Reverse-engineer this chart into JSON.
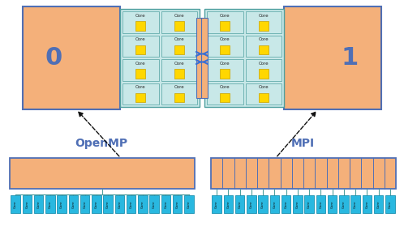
{
  "bg_color": "#ffffff",
  "node_fill": "#f4b07a",
  "node_edge": "#4f6fb5",
  "numa_fill": "#c8e8e8",
  "numa_edge": "#4f9f9f",
  "core_fill": "#ffd700",
  "core_edge": "#c8a000",
  "core_text_color": "#222222",
  "mem_bar_fill": "#f4b07a",
  "mem_bar_edge": "#4f6fb5",
  "thread_fill": "#29b8e0",
  "thread_edge": "#1a90b0",
  "connect_color": "#3a6fd4",
  "arrow_color": "#111111",
  "wire_color": "#4f9f9f",
  "openmp_label": "OpenMP",
  "mpi_label": "MPI",
  "node0_label": "0",
  "node1_label": "1",
  "core_label": "Core",
  "n_cores_omp": 16,
  "n_procs_mpi": 16,
  "figw": 4.98,
  "figh": 2.95,
  "dpi": 100
}
